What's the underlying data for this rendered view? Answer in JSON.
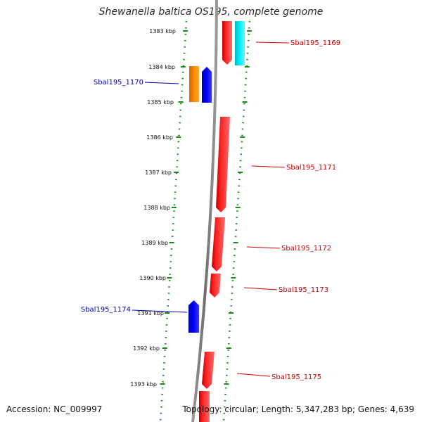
{
  "header": {
    "title": "Shewanella baltica OS195, complete genome"
  },
  "footer": {
    "accession": "Accession: NC_009997",
    "summary": "Topology: circular; Length: 5,347,283 bp; Genes: 4,639"
  },
  "colors": {
    "forward_gene": "#ff1a1a",
    "reverse_gene": "#0000ee",
    "orange_gene": "#ff8800",
    "cyan_gene": "#00e5ee",
    "backbone": "#7a7a7a",
    "ruler": "#1a8a1a",
    "label_red": "#cc0000",
    "label_blue": "#0000aa"
  },
  "map": {
    "position_labels": [
      "1383 kbp",
      "1384 kbp",
      "1385 kbp",
      "1386 kbp",
      "1387 kbp",
      "1388 kbp",
      "1389 kbp",
      "1390 kbp",
      "1391 kbp",
      "1392 kbp",
      "1393 kbp"
    ],
    "gene_labels": [
      {
        "name": "Sbal195_1169",
        "strand": "forward"
      },
      {
        "name": "Sbal195_1170",
        "strand": "reverse"
      },
      {
        "name": "Sbal195_1171",
        "strand": "forward"
      },
      {
        "name": "Sbal195_1172",
        "strand": "forward"
      },
      {
        "name": "Sbal195_1173",
        "strand": "forward"
      },
      {
        "name": "Sbal195_1174",
        "strand": "reverse"
      },
      {
        "name": "Sbal195_1175",
        "strand": "forward"
      }
    ]
  }
}
